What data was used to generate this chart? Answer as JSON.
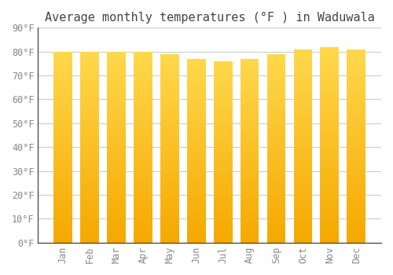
{
  "title": "Average monthly temperatures (°F ) in Waduwala",
  "months": [
    "Jan",
    "Feb",
    "Mar",
    "Apr",
    "May",
    "Jun",
    "Jul",
    "Aug",
    "Sep",
    "Oct",
    "Nov",
    "Dec"
  ],
  "values": [
    80,
    80,
    80,
    80,
    79,
    77,
    76,
    77,
    79,
    81,
    82,
    81
  ],
  "ylim": [
    0,
    90
  ],
  "yticks": [
    0,
    10,
    20,
    30,
    40,
    50,
    60,
    70,
    80,
    90
  ],
  "bar_color_bottom": "#F5A800",
  "bar_color_top": "#FFD84D",
  "background_color": "#FFFFFF",
  "plot_bg_color": "#FFFFFF",
  "grid_color": "#CCCCCC",
  "text_color": "#888888",
  "title_color": "#444444",
  "title_fontsize": 11,
  "tick_fontsize": 8.5,
  "bar_width": 0.7
}
